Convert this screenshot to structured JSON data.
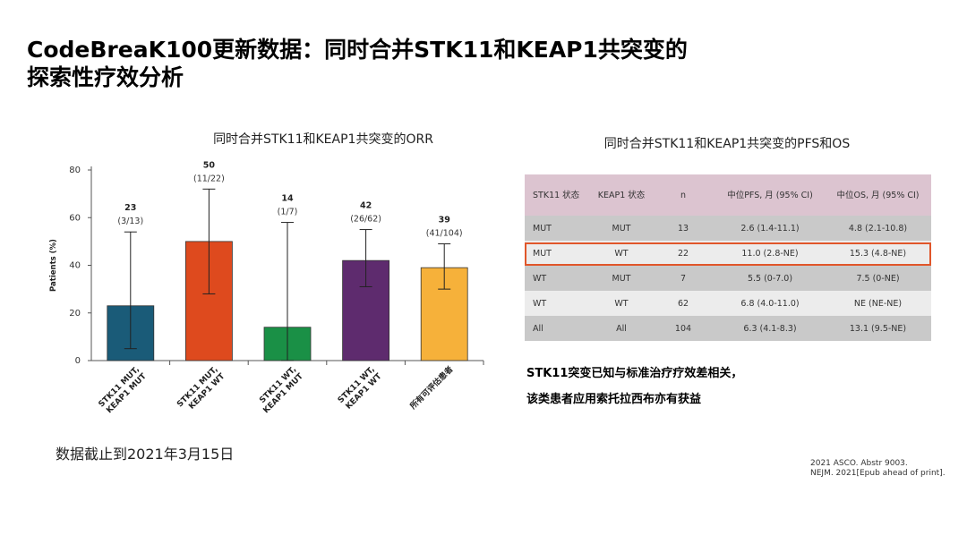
{
  "slide": {
    "title_line1": "CodeBreaK100更新数据：同时合并STK11和KEAP1共突变的",
    "title_line2": "探索性疗效分析"
  },
  "chart_data": {
    "type": "bar",
    "title": "同时合并STK11和KEAP1共突变的ORR",
    "xlabel": "",
    "ylabel": "Patients (%)",
    "ylim": [
      0,
      80
    ],
    "yticks": [
      0,
      20,
      40,
      60,
      80
    ],
    "categories": [
      "STK11 MUT, KEAP1 MUT",
      "STK11 MUT, KEAP1 WT",
      "STK11 WT, KEAP1 MUT",
      "STK11 WT, KEAP1 WT",
      "所有可评估患者"
    ],
    "values": [
      23,
      50,
      14,
      42,
      39
    ],
    "value_labels": [
      "23",
      "50",
      "14",
      "42",
      "39"
    ],
    "fraction_labels": [
      "(3/13)",
      "(11/22)",
      "(1/7)",
      "(26/62)",
      "(41/104)"
    ],
    "ci_low": [
      5,
      28,
      0,
      31,
      30
    ],
    "ci_high": [
      54,
      72,
      58,
      55,
      49
    ],
    "colors": [
      "#1a5b78",
      "#de4a1e",
      "#1a9046",
      "#5e2b6e",
      "#f6b13a"
    ]
  },
  "table": {
    "title": "同时合并STK11和KEAP1共突变的PFS和OS",
    "headers": [
      "STK11 状态",
      "KEAP1 状态",
      "n",
      "中位PFS, 月 (95% CI)",
      "中位OS, 月 (95% CI)"
    ],
    "rows": [
      [
        "MUT",
        "MUT",
        "13",
        "2.6 (1.4-11.1)",
        "4.8 (2.1-10.8)"
      ],
      [
        "MUT",
        "WT",
        "22",
        "11.0 (2.8-NE)",
        "15.3 (4.8-NE)"
      ],
      [
        "WT",
        "MUT",
        "7",
        "5.5 (0-7.0)",
        "7.5 (0-NE)"
      ],
      [
        "WT",
        "WT",
        "62",
        "6.8 (4.0-11.0)",
        "NE (NE-NE)"
      ],
      [
        "All",
        "All",
        "104",
        "6.3 (4.1-8.3)",
        "13.1 (9.5-NE)"
      ]
    ],
    "highlight_color": "#e0562a"
  },
  "notes": {
    "line1": "STK11突变已知与标准治疗疗效差相关，",
    "line2": "该类患者应用索托拉西布亦有获益"
  },
  "data_cutoff": "数据截止到2021年3月15日",
  "references": {
    "line1": "2021 ASCO. Abstr 9003.",
    "line2": "NEJM. 2021[Epub ahead of print]."
  }
}
